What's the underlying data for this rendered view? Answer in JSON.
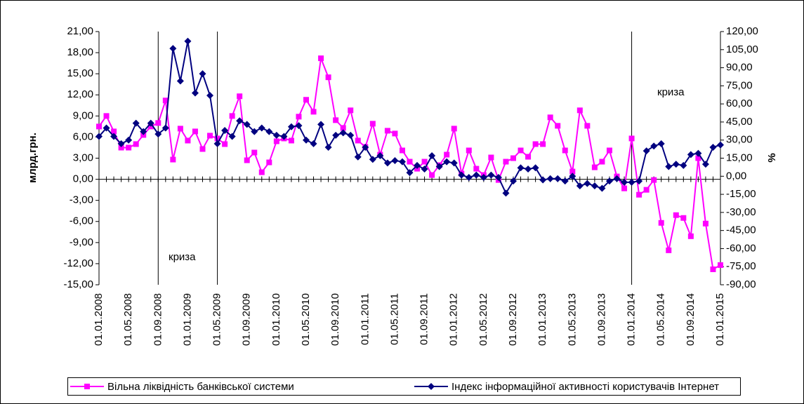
{
  "chart_data": {
    "type": "line",
    "categories": [
      "01.01.2008",
      null,
      null,
      null,
      "01.05.2008",
      null,
      null,
      null,
      "01.09.2008",
      null,
      null,
      null,
      "01.01.2009",
      null,
      null,
      null,
      "01.05.2009",
      null,
      null,
      null,
      "01.09.2009",
      null,
      null,
      null,
      "01.01.2010",
      null,
      null,
      null,
      "01.05.2010",
      null,
      null,
      null,
      "01.09.2010",
      null,
      null,
      null,
      "01.01.2011",
      null,
      null,
      null,
      "01.05.2011",
      null,
      null,
      null,
      "01.09.2011",
      null,
      null,
      null,
      "01.01.2012",
      null,
      null,
      null,
      "01.05.2012",
      null,
      null,
      null,
      "01.09.2012",
      null,
      null,
      null,
      "01.01.2013",
      null,
      null,
      null,
      "01.05.2013",
      null,
      null,
      null,
      "01.09.2013",
      null,
      null,
      null,
      "01.01.2014",
      null,
      null,
      null,
      "01.05.2014",
      null,
      null,
      null,
      "01.09.2014",
      null,
      null,
      null,
      "01.01.2015"
    ],
    "y_label": "млрд.грн.",
    "y2_label": "%",
    "series": [
      {
        "name": "Вільна ліквідність банківської системи",
        "color": "#ff00ff",
        "marker": "square",
        "values": [
          7.5,
          9.0,
          6.8,
          4.5,
          4.5,
          5.0,
          6.3,
          7.5,
          8.0,
          11.2,
          2.8,
          7.2,
          5.5,
          6.8,
          4.3,
          6.2,
          5.8,
          5.0,
          9.0,
          11.8,
          2.7,
          3.8,
          1.0,
          2.4,
          5.4,
          5.8,
          5.5,
          8.9,
          11.3,
          9.6,
          17.2,
          14.5,
          8.4,
          7.3,
          9.8,
          5.5,
          4.6,
          7.9,
          3.5,
          6.9,
          6.5,
          4.1,
          2.5,
          1.5,
          2.5,
          0.6,
          2.0,
          3.5,
          7.2,
          0.8,
          4.1,
          1.5,
          0.6,
          3.1,
          -0.1,
          2.5,
          3.0,
          4.1,
          3.2,
          5.0,
          5.0,
          8.8,
          7.6,
          4.1,
          1.1,
          9.8,
          7.6,
          1.7,
          2.5,
          4.1,
          0.4,
          -1.3,
          5.8,
          -2.2,
          -1.5,
          -0.1,
          -6.2,
          -10.1,
          -5.1,
          -5.5,
          -8.1,
          3.0,
          -6.3,
          -12.8,
          -12.2
        ]
      },
      {
        "name": "Індекс інформаційної активності користувачів Інтернет",
        "color": "#000080",
        "marker": "diamond",
        "axis": "y2",
        "values": [
          33,
          40,
          33,
          27,
          30,
          44,
          37,
          44,
          35,
          40,
          106,
          79,
          112,
          69,
          85,
          67,
          27,
          38,
          33,
          46,
          43,
          37,
          40,
          37,
          34,
          33,
          41,
          42,
          30,
          27,
          43,
          24,
          34,
          36,
          34,
          16,
          24,
          14,
          17,
          11,
          13,
          12,
          3,
          9,
          6,
          17,
          8,
          12,
          11,
          1,
          -1,
          1,
          -1,
          1,
          -1,
          -14,
          -4,
          7,
          6,
          7,
          -3,
          -2,
          -2,
          -4,
          0,
          -8,
          -6,
          -8,
          -10,
          -4,
          -2,
          -5,
          -5,
          -4,
          21,
          25,
          27,
          8,
          10,
          9,
          18,
          19,
          10,
          24,
          26
        ]
      }
    ],
    "ylim": [
      -15,
      21
    ],
    "yticks": [
      {
        "value": -15,
        "label": "-15,00"
      },
      {
        "value": -12,
        "label": "-12,00"
      },
      {
        "value": -9,
        "label": "-9,00"
      },
      {
        "value": -6,
        "label": "-6,00"
      },
      {
        "value": -3,
        "label": "-3,00"
      },
      {
        "value": 0,
        "label": "0,00"
      },
      {
        "value": 3,
        "label": "3,00"
      },
      {
        "value": 6,
        "label": "6,00"
      },
      {
        "value": 9,
        "label": "9,00"
      },
      {
        "value": 12,
        "label": "12,00"
      },
      {
        "value": 15,
        "label": "15,00"
      },
      {
        "value": 18,
        "label": "18,00"
      },
      {
        "value": 21,
        "label": "21,00"
      }
    ],
    "y2lim": [
      -90,
      120
    ],
    "y2ticks": [
      {
        "value": -90,
        "label": "-90,00"
      },
      {
        "value": -75,
        "label": "-75,00"
      },
      {
        "value": -60,
        "label": "-60,00"
      },
      {
        "value": -45,
        "label": "-45,00"
      },
      {
        "value": -30,
        "label": "-30,00"
      },
      {
        "value": -15,
        "label": "-15,00"
      },
      {
        "value": 0,
        "label": "0,00"
      },
      {
        "value": 15,
        "label": "15,00"
      },
      {
        "value": 30,
        "label": "30,00"
      },
      {
        "value": 45,
        "label": "45,00"
      },
      {
        "value": 60,
        "label": "60,00"
      },
      {
        "value": 75,
        "label": "75,00"
      },
      {
        "value": 90,
        "label": "90,00"
      },
      {
        "value": 105,
        "label": "105,00"
      },
      {
        "value": 120,
        "label": "120,00"
      }
    ],
    "markers": [
      "01.09.2008",
      "01.05.2009",
      "01.01.2014"
    ],
    "annotations": [
      {
        "text": "криза"
      },
      {
        "text": "криза"
      }
    ],
    "legend": "bottom"
  }
}
